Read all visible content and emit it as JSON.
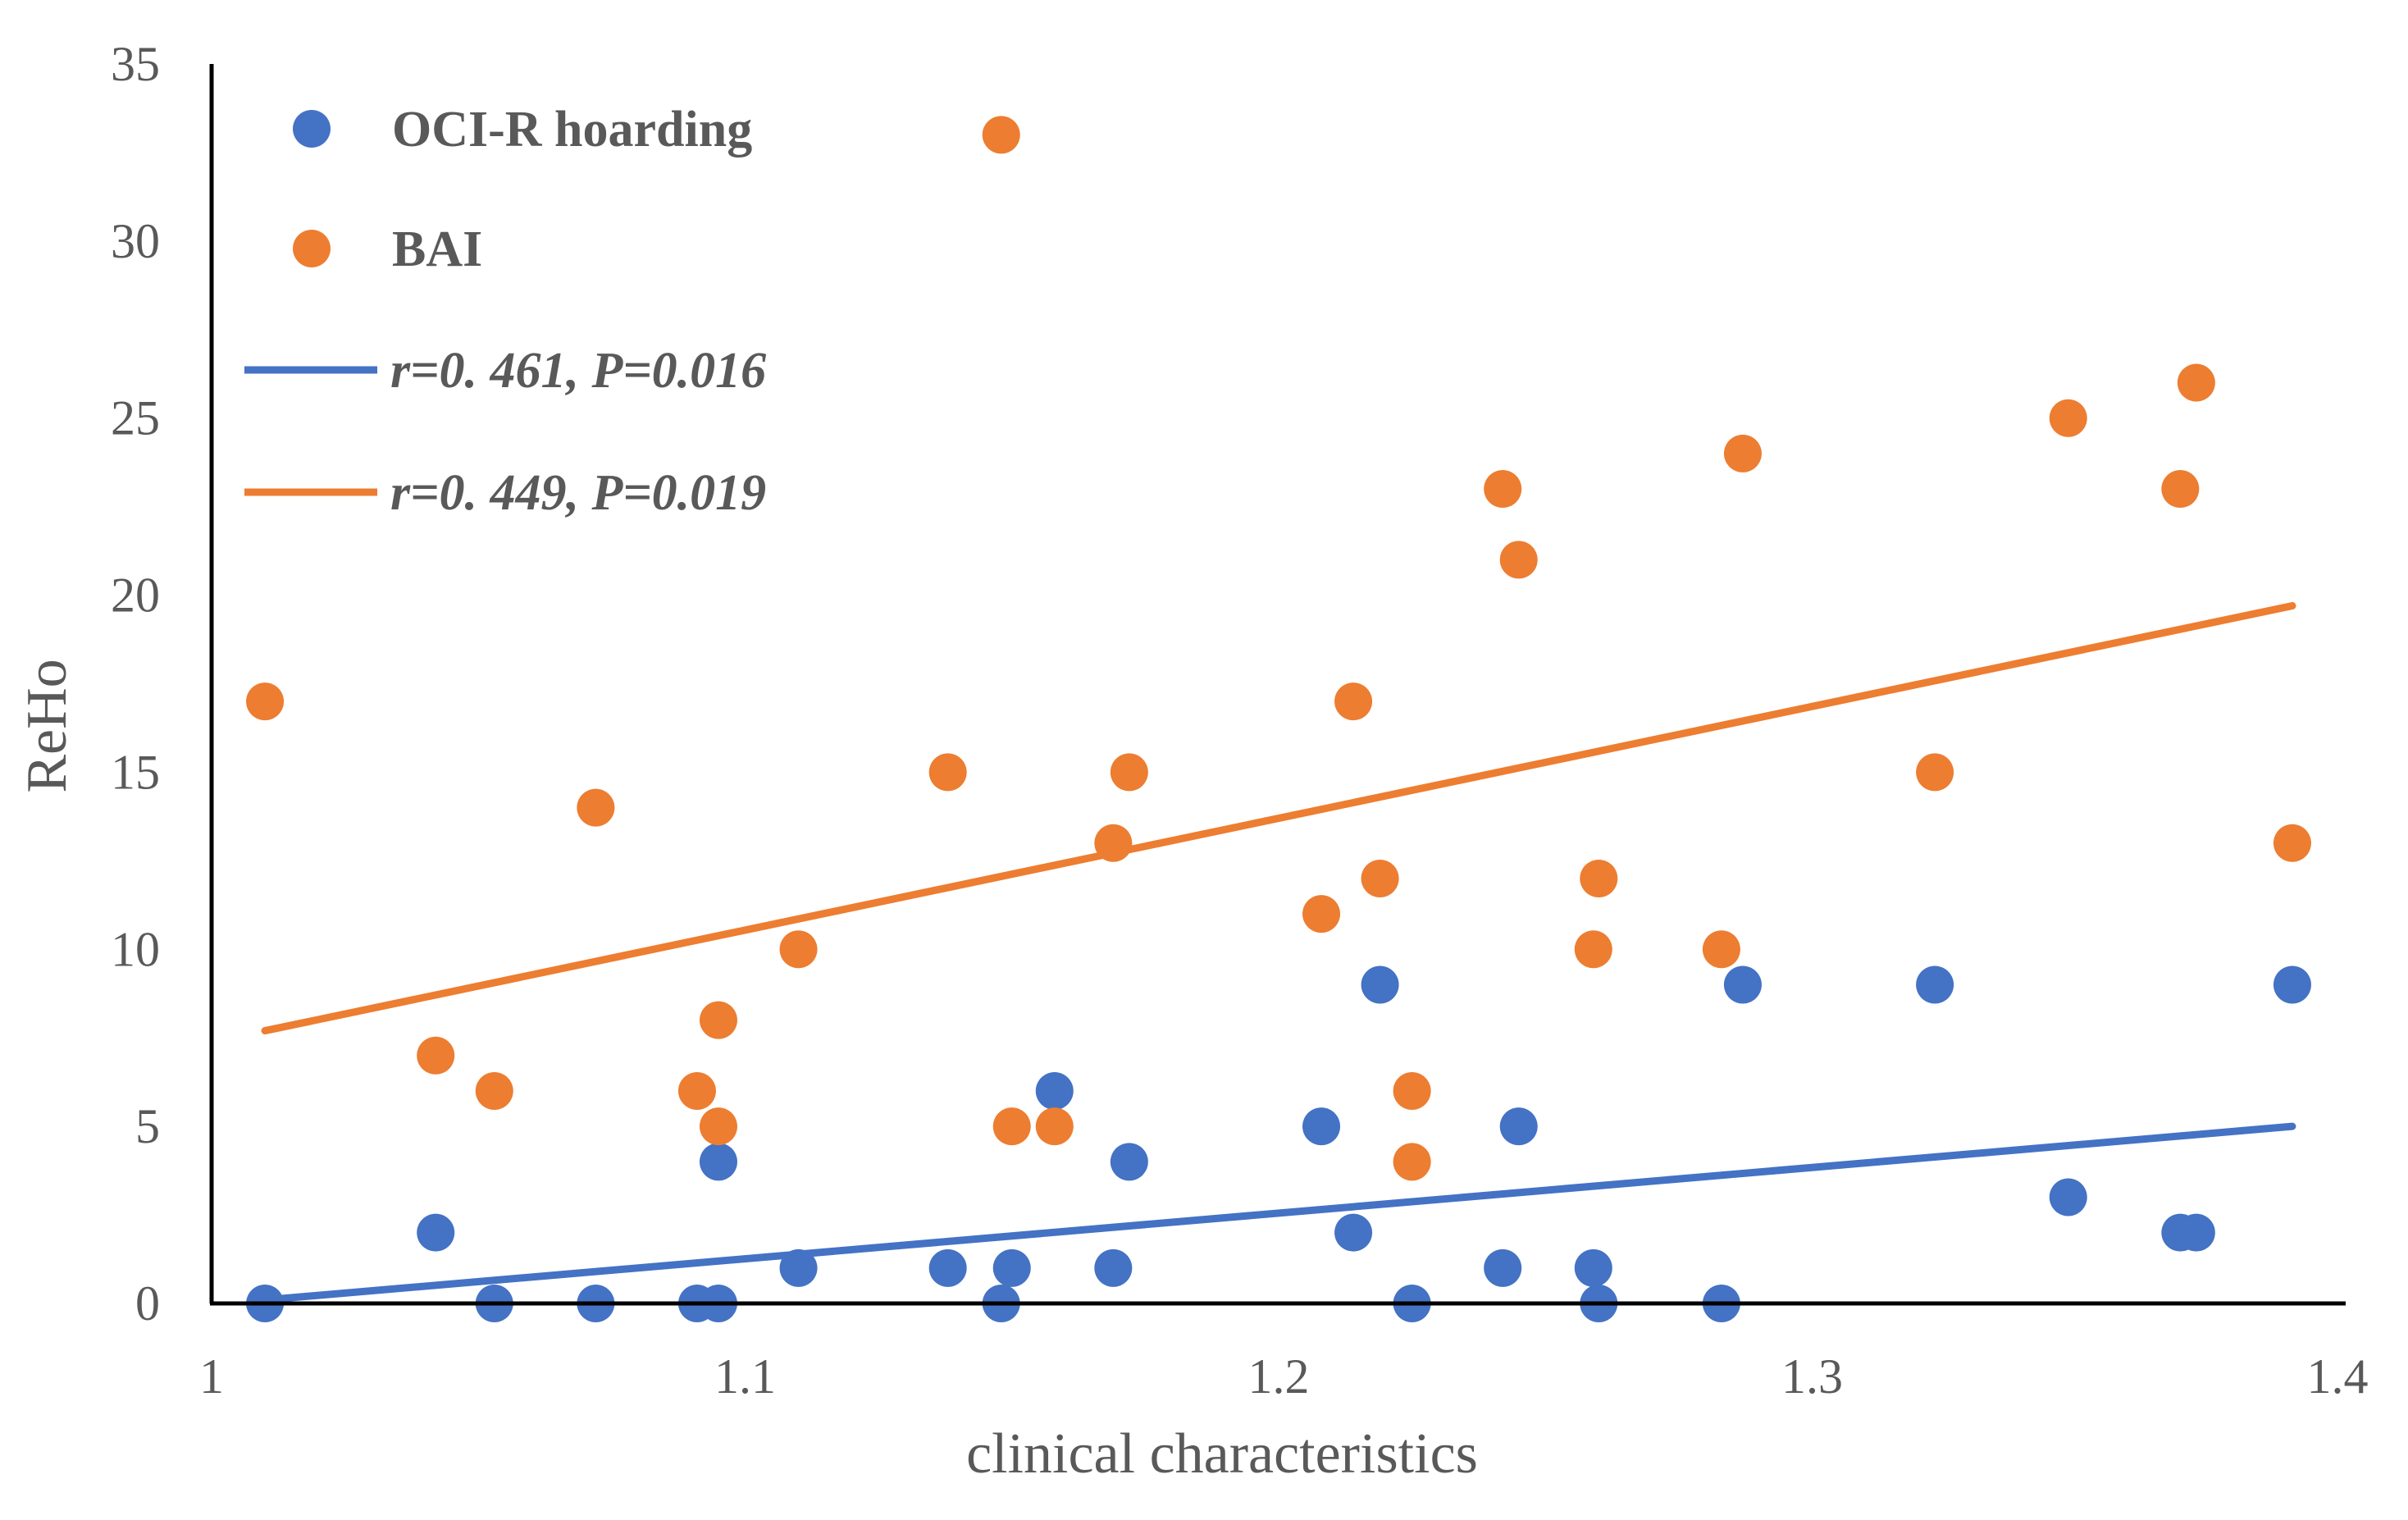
{
  "chart_data": {
    "type": "scatter",
    "title": "",
    "xlabel": "clinical characteristics",
    "ylabel": "ReHo",
    "xlim": [
      1,
      1.4
    ],
    "ylim": [
      0,
      35
    ],
    "x_ticks": [
      1,
      1.1,
      1.2,
      1.3,
      1.4
    ],
    "x_tick_labels": [
      "1",
      "1.1",
      "1.2",
      "1.3",
      "1.4"
    ],
    "y_ticks": [
      0,
      5,
      10,
      15,
      20,
      25,
      30,
      35
    ],
    "y_tick_labels": [
      "0",
      "5",
      "10",
      "15",
      "20",
      "25",
      "30",
      "35"
    ],
    "grid": false,
    "legend_position": "top-left",
    "series": [
      {
        "name": "OCI-R hoarding",
        "color": "#4472C4",
        "points": [
          [
            1.01,
            0
          ],
          [
            1.042,
            2
          ],
          [
            1.053,
            0
          ],
          [
            1.072,
            0
          ],
          [
            1.091,
            0
          ],
          [
            1.095,
            0
          ],
          [
            1.095,
            4
          ],
          [
            1.11,
            1
          ],
          [
            1.138,
            1
          ],
          [
            1.148,
            0
          ],
          [
            1.15,
            1
          ],
          [
            1.158,
            6
          ],
          [
            1.169,
            1
          ],
          [
            1.172,
            4
          ],
          [
            1.208,
            5
          ],
          [
            1.214,
            2
          ],
          [
            1.219,
            9
          ],
          [
            1.225,
            0
          ],
          [
            1.242,
            1
          ],
          [
            1.245,
            5
          ],
          [
            1.259,
            1
          ],
          [
            1.26,
            0
          ],
          [
            1.283,
            0
          ],
          [
            1.287,
            9
          ],
          [
            1.323,
            9
          ],
          [
            1.348,
            3
          ],
          [
            1.369,
            2
          ],
          [
            1.372,
            2
          ],
          [
            1.39,
            9
          ]
        ]
      },
      {
        "name": "BAI",
        "color": "#ED7D31",
        "points": [
          [
            1.01,
            17
          ],
          [
            1.042,
            7
          ],
          [
            1.053,
            6
          ],
          [
            1.072,
            14
          ],
          [
            1.091,
            6
          ],
          [
            1.095,
            8
          ],
          [
            1.095,
            5
          ],
          [
            1.11,
            10
          ],
          [
            1.138,
            15
          ],
          [
            1.148,
            33
          ],
          [
            1.15,
            5
          ],
          [
            1.158,
            5
          ],
          [
            1.169,
            13
          ],
          [
            1.172,
            15
          ],
          [
            1.208,
            11
          ],
          [
            1.214,
            17
          ],
          [
            1.219,
            12
          ],
          [
            1.225,
            6
          ],
          [
            1.225,
            4
          ],
          [
            1.242,
            23
          ],
          [
            1.245,
            21
          ],
          [
            1.259,
            10
          ],
          [
            1.26,
            12
          ],
          [
            1.283,
            10
          ],
          [
            1.287,
            24
          ],
          [
            1.323,
            15
          ],
          [
            1.348,
            25
          ],
          [
            1.369,
            23
          ],
          [
            1.372,
            26
          ],
          [
            1.39,
            13
          ]
        ]
      }
    ],
    "trendlines": [
      {
        "name": "r=0. 461, P=0.016",
        "color": "#4472C4",
        "x": [
          1.01,
          1.39
        ],
        "y": [
          0.1,
          5.0
        ]
      },
      {
        "name": "r=0. 449, P=0.019",
        "color": "#ED7D31",
        "x": [
          1.01,
          1.39
        ],
        "y": [
          7.7,
          19.7
        ]
      }
    ]
  }
}
